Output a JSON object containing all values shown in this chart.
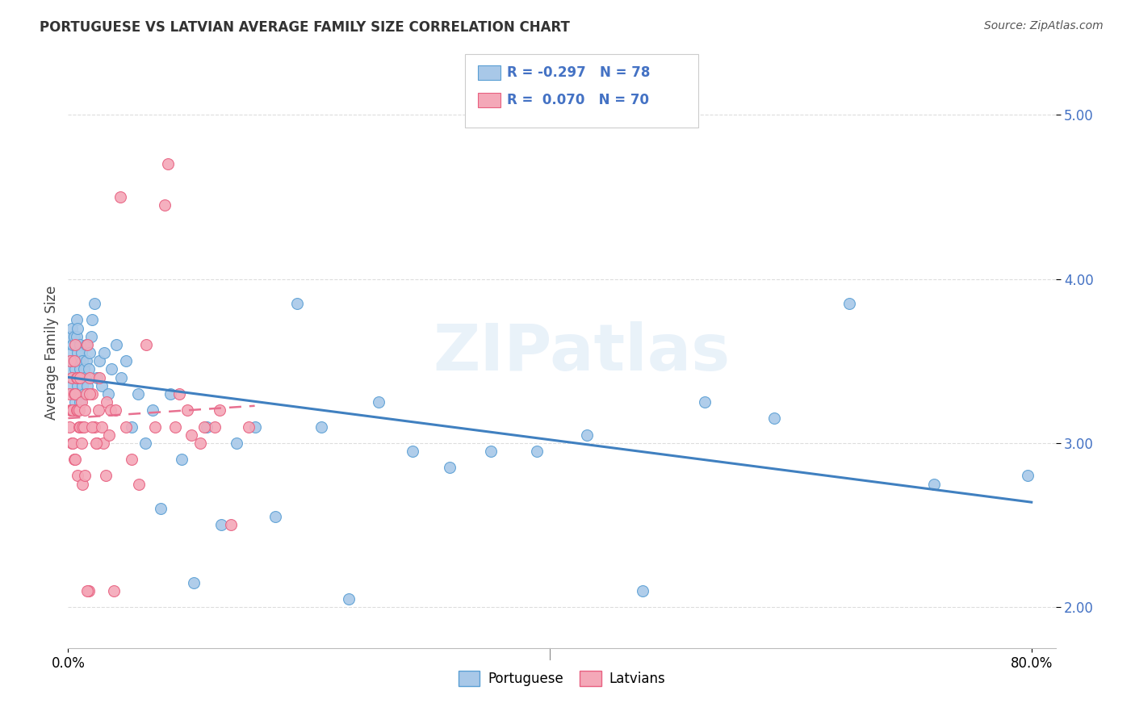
{
  "title": "PORTUGUESE VS LATVIAN AVERAGE FAMILY SIZE CORRELATION CHART",
  "source": "Source: ZipAtlas.com",
  "ylabel": "Average Family Size",
  "blue_R": -0.297,
  "blue_N": 78,
  "pink_R": 0.07,
  "pink_N": 70,
  "blue_color": "#A8C8E8",
  "pink_color": "#F4A8B8",
  "blue_edge_color": "#5A9FD4",
  "pink_edge_color": "#E86080",
  "blue_line_color": "#4080C0",
  "pink_line_color": "#E87090",
  "legend_blue_label": "Portuguese",
  "legend_pink_label": "Latvians",
  "watermark": "ZIPatlas",
  "blue_scatter_x": [
    0.001,
    0.002,
    0.002,
    0.003,
    0.003,
    0.003,
    0.004,
    0.004,
    0.005,
    0.005,
    0.005,
    0.006,
    0.006,
    0.006,
    0.007,
    0.007,
    0.007,
    0.007,
    0.008,
    0.008,
    0.008,
    0.009,
    0.009,
    0.01,
    0.01,
    0.01,
    0.011,
    0.011,
    0.012,
    0.012,
    0.013,
    0.013,
    0.014,
    0.015,
    0.015,
    0.016,
    0.017,
    0.018,
    0.019,
    0.02,
    0.022,
    0.024,
    0.026,
    0.028,
    0.03,
    0.033,
    0.036,
    0.04,
    0.044,
    0.048,
    0.053,
    0.058,
    0.064,
    0.07,
    0.077,
    0.085,
    0.094,
    0.104,
    0.115,
    0.127,
    0.14,
    0.155,
    0.172,
    0.19,
    0.21,
    0.233,
    0.258,
    0.286,
    0.317,
    0.351,
    0.389,
    0.431,
    0.477,
    0.529,
    0.586,
    0.649,
    0.719,
    0.797
  ],
  "blue_scatter_y": [
    3.5,
    3.45,
    3.65,
    3.35,
    3.55,
    3.7,
    3.4,
    3.6,
    3.3,
    3.5,
    3.65,
    3.25,
    3.45,
    3.6,
    3.3,
    3.5,
    3.65,
    3.75,
    3.35,
    3.55,
    3.7,
    3.3,
    3.5,
    3.25,
    3.45,
    3.6,
    3.4,
    3.55,
    3.35,
    3.5,
    3.3,
    3.45,
    3.4,
    3.5,
    3.6,
    3.35,
    3.45,
    3.55,
    3.65,
    3.75,
    3.85,
    3.4,
    3.5,
    3.35,
    3.55,
    3.3,
    3.45,
    3.6,
    3.4,
    3.5,
    3.1,
    3.3,
    3.0,
    3.2,
    2.6,
    3.3,
    2.9,
    2.15,
    3.1,
    2.5,
    3.0,
    3.1,
    2.55,
    3.85,
    3.1,
    2.05,
    3.25,
    2.95,
    2.85,
    2.95,
    2.95,
    3.05,
    2.1,
    3.25,
    3.15,
    3.85,
    2.75,
    2.8
  ],
  "pink_scatter_x": [
    0.001,
    0.001,
    0.002,
    0.002,
    0.003,
    0.003,
    0.003,
    0.004,
    0.004,
    0.005,
    0.005,
    0.005,
    0.006,
    0.006,
    0.006,
    0.007,
    0.007,
    0.008,
    0.008,
    0.008,
    0.009,
    0.009,
    0.01,
    0.01,
    0.011,
    0.011,
    0.012,
    0.012,
    0.013,
    0.014,
    0.015,
    0.016,
    0.017,
    0.018,
    0.02,
    0.022,
    0.024,
    0.026,
    0.029,
    0.032,
    0.035,
    0.039,
    0.043,
    0.048,
    0.053,
    0.059,
    0.065,
    0.072,
    0.08,
    0.089,
    0.099,
    0.11,
    0.122,
    0.135,
    0.15,
    0.083,
    0.092,
    0.102,
    0.113,
    0.126,
    0.014,
    0.016,
    0.018,
    0.02,
    0.023,
    0.025,
    0.028,
    0.031,
    0.034,
    0.038
  ],
  "pink_scatter_y": [
    3.3,
    3.1,
    3.2,
    3.5,
    3.0,
    3.2,
    3.4,
    3.2,
    3.0,
    2.9,
    3.3,
    3.5,
    3.3,
    3.6,
    2.9,
    3.2,
    3.4,
    3.2,
    3.4,
    2.8,
    3.2,
    3.1,
    3.4,
    3.1,
    3.0,
    3.25,
    3.1,
    2.75,
    3.1,
    2.8,
    3.3,
    3.6,
    2.1,
    3.4,
    3.3,
    3.1,
    3.0,
    3.4,
    3.0,
    3.25,
    3.2,
    3.2,
    4.5,
    3.1,
    2.9,
    2.75,
    3.6,
    3.1,
    4.45,
    3.1,
    3.2,
    3.0,
    3.1,
    2.5,
    3.1,
    4.7,
    3.3,
    3.05,
    3.1,
    3.2,
    3.2,
    2.1,
    3.3,
    3.1,
    3.0,
    3.2,
    3.1,
    2.8,
    3.05,
    2.1
  ],
  "xlim": [
    0.0,
    0.82
  ],
  "ylim": [
    1.75,
    5.35
  ],
  "yticks": [
    2.0,
    3.0,
    4.0,
    5.0
  ],
  "background_color": "#FFFFFF",
  "grid_color": "#DDDDDD",
  "title_fontsize": 12,
  "axis_fontsize": 12,
  "tick_fontsize": 12
}
